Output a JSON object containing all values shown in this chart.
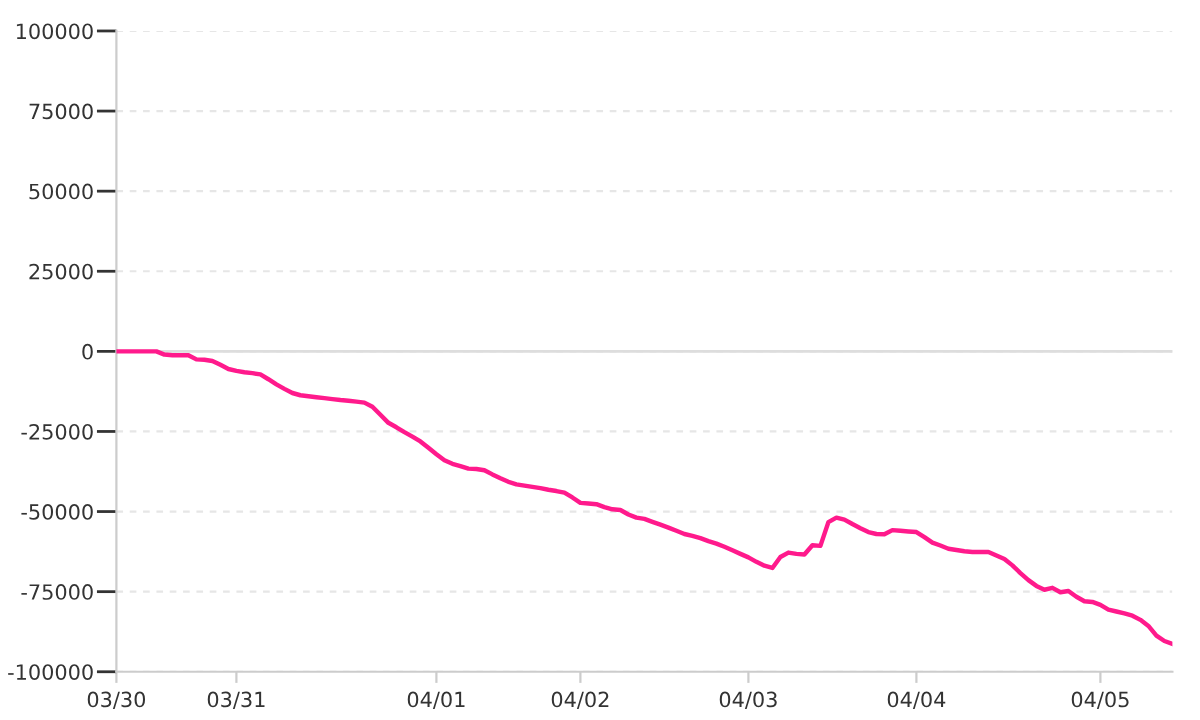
{
  "chart_data": {
    "type": "line",
    "categories": [
      "03/30",
      null,
      null,
      null,
      null,
      null,
      null,
      null,
      null,
      null,
      null,
      null,
      null,
      null,
      null,
      "03/31",
      null,
      null,
      null,
      null,
      null,
      null,
      null,
      null,
      null,
      null,
      null,
      null,
      null,
      null,
      null,
      null,
      null,
      null,
      null,
      null,
      null,
      null,
      null,
      null,
      "04/01",
      null,
      null,
      null,
      null,
      null,
      null,
      null,
      null,
      null,
      null,
      null,
      null,
      null,
      null,
      null,
      null,
      null,
      "04/02",
      null,
      null,
      null,
      null,
      null,
      null,
      null,
      null,
      null,
      null,
      null,
      null,
      null,
      null,
      null,
      null,
      null,
      null,
      null,
      null,
      "04/03",
      null,
      null,
      null,
      null,
      null,
      null,
      null,
      null,
      null,
      null,
      null,
      null,
      null,
      null,
      null,
      null,
      null,
      null,
      null,
      null,
      "04/04",
      null,
      null,
      null,
      null,
      null,
      null,
      null,
      null,
      null,
      null,
      null,
      null,
      null,
      null,
      null,
      null,
      null,
      null,
      null,
      null,
      null,
      null,
      "04/05",
      null,
      null,
      null,
      null,
      null,
      null,
      null,
      null,
      null
    ],
    "series": [
      {
        "color": "#ff1a8c",
        "values": [
          0,
          0,
          0,
          0,
          0,
          0,
          -1000,
          -1200,
          -1200,
          -1200,
          -2500,
          -2600,
          -3000,
          -4200,
          -5500,
          -6100,
          -6500,
          -6800,
          -7200,
          -8700,
          -10300,
          -11700,
          -13000,
          -13700,
          -14000,
          -14300,
          -14600,
          -14900,
          -15200,
          -15400,
          -15700,
          -16000,
          -17300,
          -19800,
          -22300,
          -23700,
          -25200,
          -26600,
          -28100,
          -30100,
          -32100,
          -34000,
          -35100,
          -35800,
          -36600,
          -36700,
          -37100,
          -38400,
          -39600,
          -40700,
          -41500,
          -41900,
          -42300,
          -42700,
          -43200,
          -43600,
          -44100,
          -45600,
          -47300,
          -47500,
          -47700,
          -48600,
          -49300,
          -49500,
          -50900,
          -51900,
          -52300,
          -53200,
          -54100,
          -55000,
          -56000,
          -57000,
          -57600,
          -58300,
          -59200,
          -60000,
          -61000,
          -62100,
          -63200,
          -64300,
          -65700,
          -66900,
          -67600,
          -64200,
          -62800,
          -63200,
          -63400,
          -60500,
          -60700,
          -53300,
          -51900,
          -52500,
          -53900,
          -55200,
          -56400,
          -57000,
          -57100,
          -55800,
          -56000,
          -56200,
          -56400,
          -58000,
          -59700,
          -60600,
          -61600,
          -62000,
          -62400,
          -62600,
          -62600,
          -62600,
          -63700,
          -64800,
          -66800,
          -69200,
          -71400,
          -73200,
          -74400,
          -73800,
          -75200,
          -74800,
          -76600,
          -78000,
          -78200,
          -79100,
          -80600,
          -81200,
          -81800,
          -82500,
          -83800,
          -85700,
          -88700,
          -90400,
          -91300
        ]
      }
    ],
    "ylim": [
      -100000,
      100000
    ],
    "yticks": [
      -100000,
      -75000,
      -50000,
      -25000,
      0,
      25000,
      50000,
      75000,
      100000
    ],
    "grid": "y",
    "ref_lines": [
      {
        "axis": "y",
        "value": 0,
        "color": "#dddddd",
        "line_style": "solid"
      }
    ],
    "marker": "none",
    "line_style": "solid"
  }
}
